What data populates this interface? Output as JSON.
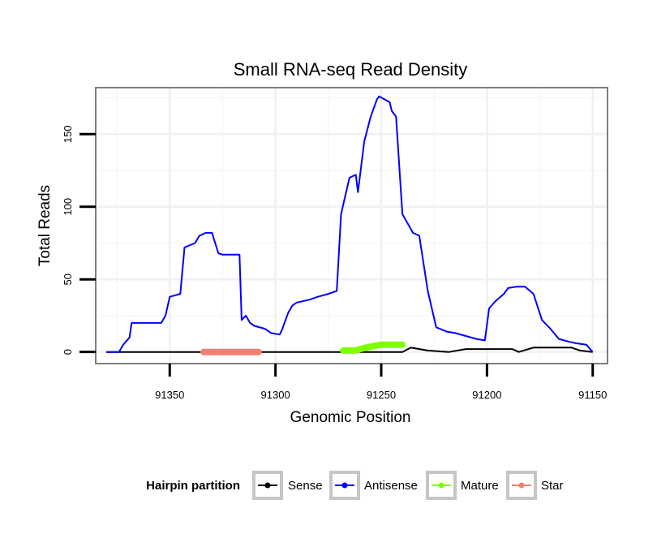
{
  "chart_data": {
    "type": "line",
    "title": "Small RNA-seq Read Density",
    "xlabel": "Genomic Position",
    "ylabel": "Total Reads",
    "xlim": [
      91385,
      91143
    ],
    "ylim": [
      -8,
      182
    ],
    "x_reversed": true,
    "x_ticks": [
      91350,
      91300,
      91250,
      91200,
      91150
    ],
    "x_tick_labels": [
      "91350",
      "91300",
      "91250",
      "91200",
      "91150"
    ],
    "y_ticks": [
      0,
      50,
      100,
      150
    ],
    "y_tick_labels": [
      "0",
      "50",
      "100",
      "150"
    ],
    "grid": true,
    "legend": {
      "title": "Hairpin partition",
      "position": "bottom",
      "entries": [
        "Sense",
        "Antisense",
        "Mature",
        "Star"
      ]
    },
    "series": [
      {
        "name": "Sense",
        "color": "#000000",
        "x": [
          91380,
          91240,
          91236,
          91228,
          91218,
          91210,
          91188,
          91185,
          91178,
          91160,
          91156,
          91150
        ],
        "y": [
          0,
          0,
          3,
          1,
          0,
          2,
          2,
          0,
          3,
          3,
          1,
          0
        ]
      },
      {
        "name": "Antisense",
        "color": "#0000ff",
        "x": [
          91380,
          91374,
          91372,
          91369,
          91368,
          91365,
          91354,
          91352,
          91350,
          91345,
          91343,
          91338,
          91336,
          91333,
          91330,
          91327,
          91325,
          91317,
          91316,
          91314,
          91312,
          91310,
          91305,
          91302,
          91298,
          91297,
          91294,
          91292,
          91290,
          91284,
          91280,
          91275,
          91271,
          91269,
          91265,
          91262,
          91261,
          91258,
          91255,
          91252,
          91251,
          91246,
          91245,
          91243,
          91240,
          91235,
          91232,
          91228,
          91224,
          91219,
          91215,
          91210,
          91205,
          91201,
          91199,
          91196,
          91192,
          91190,
          91186,
          91182,
          91178,
          91174,
          91170,
          91166,
          91161,
          91158,
          91153,
          91150
        ],
        "y": [
          0,
          0,
          5,
          10,
          20,
          20,
          20,
          25,
          38,
          40,
          72,
          75,
          80,
          82,
          82,
          68,
          67,
          67,
          22,
          25,
          20,
          18,
          16,
          13,
          12,
          15,
          27,
          32,
          34,
          36,
          38,
          40,
          42,
          95,
          120,
          122,
          110,
          145,
          162,
          174,
          176,
          172,
          166,
          162,
          95,
          82,
          80,
          42,
          17,
          14,
          13,
          11,
          9,
          8,
          30,
          35,
          40,
          44,
          45,
          45,
          40,
          22,
          16,
          9,
          7,
          6,
          5,
          0
        ]
      },
      {
        "name": "Mature",
        "color": "#7fff00",
        "x": [
          91268,
          91262,
          91260,
          91257,
          91254,
          91250,
          91246,
          91242,
          91240
        ],
        "y": [
          1,
          1,
          2,
          3,
          4,
          5,
          5,
          5,
          5
        ]
      },
      {
        "name": "Star",
        "color": "#f08070",
        "x": [
          91334,
          91308
        ],
        "y": [
          0,
          0
        ]
      }
    ]
  }
}
